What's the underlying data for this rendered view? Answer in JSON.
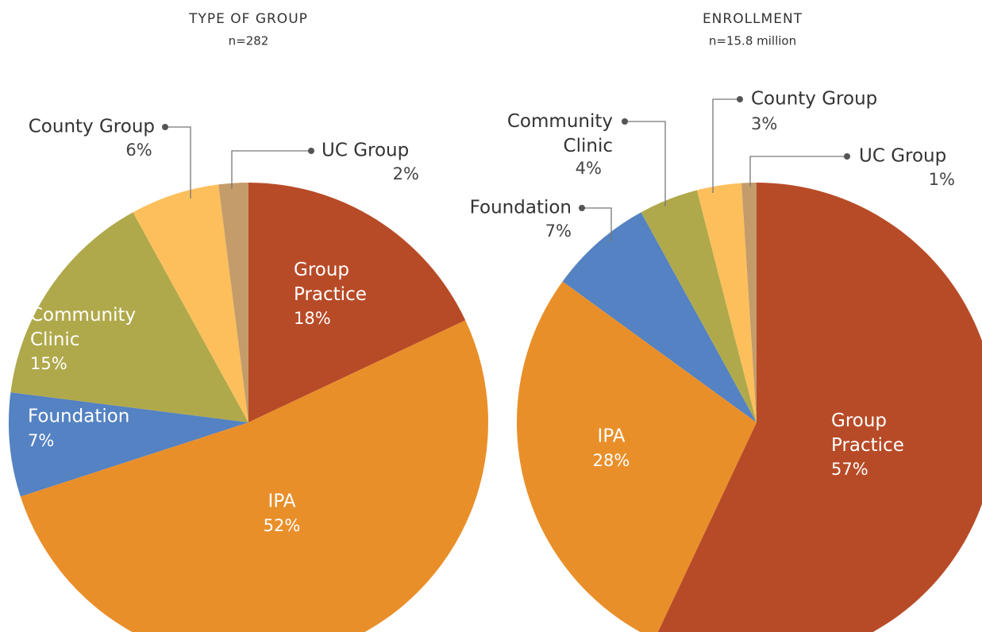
{
  "chart_data": [
    {
      "type": "pie",
      "title": "TYPE OF GROUP",
      "subtitle": "n=282",
      "categories": [
        "Group Practice",
        "IPA",
        "Foundation",
        "Community Clinic",
        "County Group",
        "UC Group"
      ],
      "values": [
        18,
        52,
        7,
        15,
        6,
        2
      ],
      "value_labels": [
        "18%",
        "52%",
        "7%",
        "15%",
        "6%",
        "2%"
      ],
      "colors": [
        "#b84b27",
        "#e98f2a",
        "#5482c2",
        "#b0a94b",
        "#fdbf5c",
        "#c49c6a"
      ]
    },
    {
      "type": "pie",
      "title": "ENROLLMENT",
      "subtitle": "n=15.8 million",
      "categories": [
        "Group Practice",
        "IPA",
        "Foundation",
        "Community Clinic",
        "County Group",
        "UC Group"
      ],
      "values": [
        57,
        28,
        7,
        4,
        3,
        1
      ],
      "value_labels": [
        "57%",
        "28%",
        "7%",
        "4%",
        "3%",
        "1%"
      ],
      "colors": [
        "#b84b27",
        "#e98f2a",
        "#5482c2",
        "#b0a94b",
        "#fdbf5c",
        "#c49c6a"
      ]
    }
  ]
}
